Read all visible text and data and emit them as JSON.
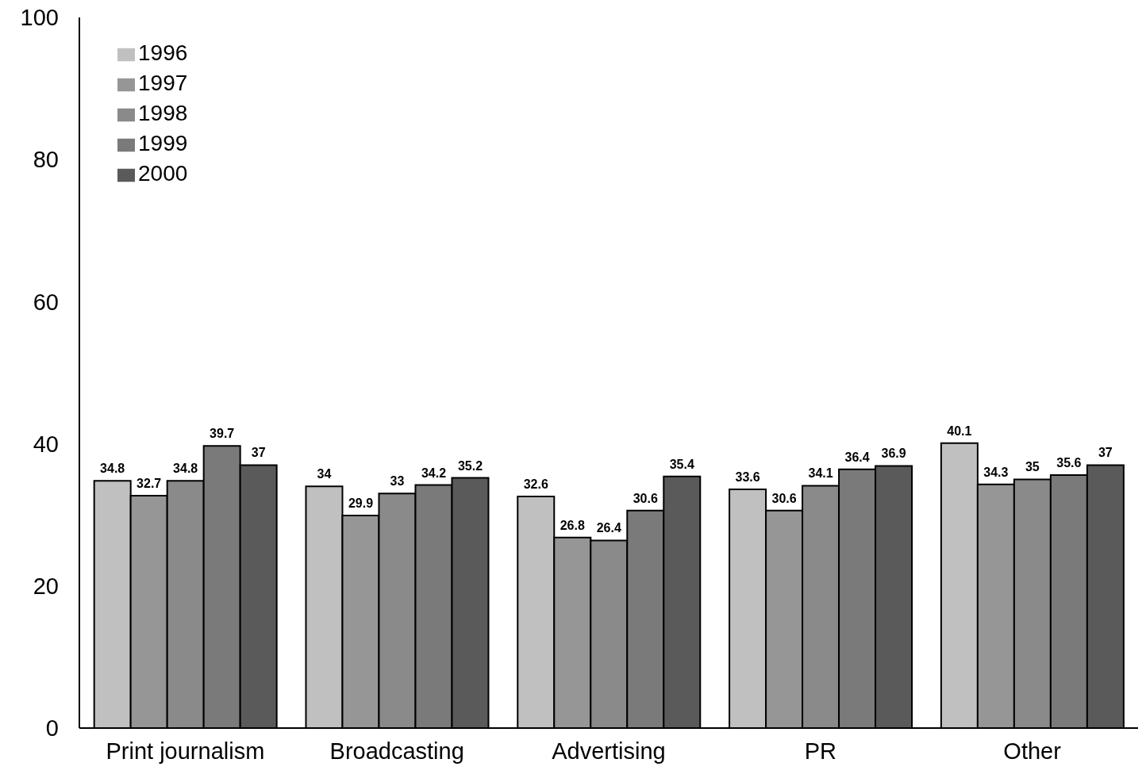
{
  "chart_data": {
    "type": "bar",
    "categories": [
      "Print journalism",
      "Broadcasting",
      "Advertising",
      "PR",
      "Other"
    ],
    "series": [
      {
        "name": "1996",
        "color": "#c0c0c0",
        "values": [
          34.8,
          34,
          32.6,
          33.6,
          40.1
        ]
      },
      {
        "name": "1997",
        "color": "#969696",
        "values": [
          32.7,
          29.9,
          26.8,
          30.6,
          34.3
        ]
      },
      {
        "name": "1998",
        "color": "#8a8a8a",
        "values": [
          34.8,
          33,
          26.4,
          34.1,
          35
        ]
      },
      {
        "name": "1999",
        "color": "#7a7a7a",
        "values": [
          39.7,
          34.2,
          30.6,
          36.4,
          35.6
        ]
      },
      {
        "name": "2000",
        "color": "#5a5a5a",
        "values": [
          37,
          35.2,
          35.4,
          36.9,
          37
        ]
      }
    ],
    "ylim": [
      0,
      100
    ],
    "yticks": [
      0,
      20,
      40,
      60,
      80,
      100
    ],
    "grid": false,
    "legend": "top left",
    "data_labels": true
  }
}
